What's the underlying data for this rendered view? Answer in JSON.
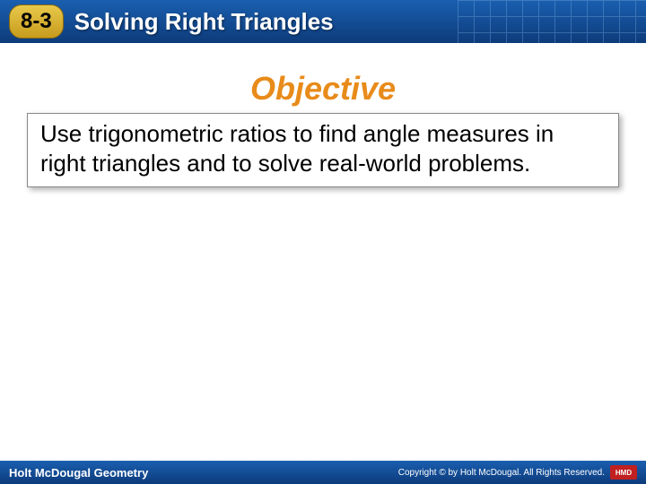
{
  "header": {
    "lesson_number": "8-3",
    "title": "Solving Right Triangles",
    "bar_gradient_top": "#1a5fb0",
    "bar_gradient_bottom": "#0d3b7a",
    "badge_gradient_top": "#e8c94a",
    "badge_gradient_bottom": "#c79b1e"
  },
  "content": {
    "section_heading": "Objective",
    "heading_color": "#e88b1a",
    "objective_text": "Use trigonometric ratios to find angle measures in right triangles and to solve real-world problems."
  },
  "footer": {
    "left_text": "Holt McDougal Geometry",
    "copyright_text": "Copyright © by Holt McDougal. All Rights Reserved.",
    "logo_text": "HMD",
    "bar_gradient_top": "#1a5fb0",
    "bar_gradient_bottom": "#0d3b7a"
  }
}
